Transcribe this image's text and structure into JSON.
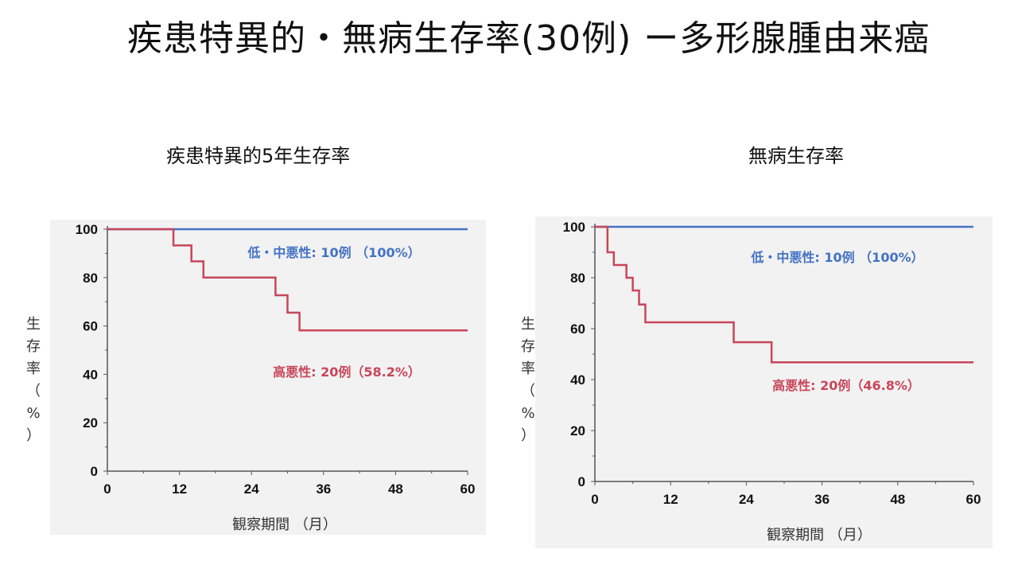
{
  "slide": {
    "title": "疾患特異的・無病生存率(30例) ー多形腺腫由来癌"
  },
  "colors": {
    "low": "#4472c4",
    "high": "#c8465a",
    "axis": "#555555",
    "panel": "#f2f2f2"
  },
  "chart_data": [
    {
      "type": "line",
      "step": true,
      "title": "疾患特異的5年生存率",
      "xlabel": "観察期間 （月）",
      "ylabel": "生存率（%）",
      "xlim": [
        0,
        60
      ],
      "ylim": [
        0,
        100
      ],
      "xticks": [
        0,
        12,
        24,
        36,
        48,
        60
      ],
      "yticks": [
        0,
        20,
        40,
        60,
        80,
        100
      ],
      "series": [
        {
          "name": "低・中悪性: 10例 （100%）",
          "color": "#4472c4",
          "x": [
            0,
            60
          ],
          "y": [
            100,
            100
          ]
        },
        {
          "name": "高悪性: 20例（58.2%）",
          "color": "#c8465a",
          "x": [
            0,
            11,
            14,
            16,
            28,
            30,
            32,
            60
          ],
          "y": [
            100,
            93.3,
            86.7,
            80,
            72.7,
            65.5,
            58.2,
            58.2
          ]
        }
      ]
    },
    {
      "type": "line",
      "step": true,
      "title": "無病生存率",
      "xlabel": "観察期間 （月）",
      "ylabel": "生存率（%）",
      "xlim": [
        0,
        60
      ],
      "ylim": [
        0,
        100
      ],
      "xticks": [
        0,
        12,
        24,
        36,
        48,
        60
      ],
      "yticks": [
        0,
        20,
        40,
        60,
        80,
        100
      ],
      "series": [
        {
          "name": "低・中悪性: 10例 （100%）",
          "color": "#4472c4",
          "x": [
            0,
            60
          ],
          "y": [
            100,
            100
          ]
        },
        {
          "name": "高悪性: 20例（46.8%）",
          "color": "#c8465a",
          "x": [
            0,
            2,
            3,
            5,
            6,
            7,
            8,
            22,
            28,
            60
          ],
          "y": [
            100,
            90,
            85,
            80,
            75,
            69.5,
            62.5,
            54.7,
            46.8,
            46.8
          ]
        }
      ]
    }
  ]
}
